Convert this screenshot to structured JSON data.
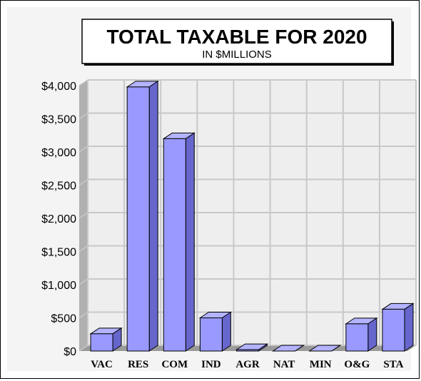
{
  "chart_data": {
    "type": "bar",
    "title": "TOTAL TAXABLE FOR 2020",
    "subtitle": "IN $MILLIONS",
    "categories": [
      "VAC",
      "RES",
      "COM",
      "IND",
      "AGR",
      "NAT",
      "MIN",
      "O&G",
      "STA"
    ],
    "values": [
      260,
      3980,
      3200,
      500,
      20,
      0,
      0,
      410,
      630
    ],
    "ylim": [
      0,
      4000
    ],
    "yticks": [
      0,
      500,
      1000,
      1500,
      2000,
      2500,
      3000,
      3500,
      4000
    ],
    "ytick_labels": [
      "$0",
      "$500",
      "$1,000",
      "$1,500",
      "$2,000",
      "$2,500",
      "$3,000",
      "$3,500",
      "$4,000"
    ],
    "grid": true,
    "legend": "none",
    "colors": {
      "bar_front": "#9999ff",
      "bar_top": "#b3b3ff",
      "bar_side": "#6666cc",
      "plot_background": "#eeeeee",
      "wall": "#b0b0b0",
      "grid": "#c8c8c8",
      "frame_background": "#f4f4f4"
    }
  }
}
